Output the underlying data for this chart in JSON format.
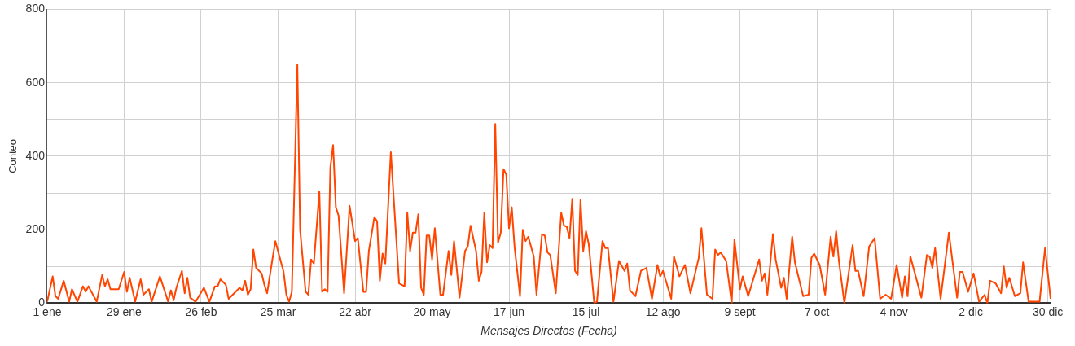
{
  "chart_data": {
    "type": "line",
    "xlabel": "Mensajes Directos (Fecha)",
    "ylabel": "Conteo",
    "x": [
      "--01-01",
      "--01-03",
      "--01-04",
      "--01-05",
      "--01-07",
      "--01-09",
      "--01-10",
      "--01-12",
      "--01-14",
      "--01-15",
      "--01-16",
      "--01-19",
      "--01-21",
      "--01-22",
      "--01-23",
      "--01-24",
      "--01-27",
      "--01-29",
      "--01-30",
      "--01-31",
      "--02-02",
      "--02-04",
      "--02-05",
      "--02-07",
      "--02-08",
      "--02-11",
      "--02-14",
      "--02-15",
      "--02-16",
      "--02-17",
      "--02-19",
      "--02-20",
      "--02-21",
      "--02-22",
      "--02-24",
      "--02-27",
      "--02-29",
      "--03-02",
      "--03-03",
      "--03-04",
      "--03-06",
      "--03-07",
      "--03-11",
      "--03-12",
      "--03-13",
      "--03-14",
      "--03-15",
      "--03-16",
      "--03-17",
      "--03-19",
      "--03-20",
      "--03-21",
      "--03-23",
      "--03-24",
      "--03-27",
      "--03-28",
      "--03-29",
      "--03-30",
      "--04-01",
      "--04-02",
      "--04-04",
      "--04-05",
      "--04-06",
      "--04-07",
      "--04-09",
      "--04-10",
      "--04-11",
      "--04-12",
      "--04-13",
      "--04-14",
      "--04-15",
      "--04-16",
      "--04-18",
      "--04-20",
      "--04-22",
      "--04-23",
      "--04-25",
      "--04-26",
      "--04-27",
      "--04-29",
      "--04-30",
      "--05-01",
      "--05-02",
      "--05-03",
      "--05-05",
      "--05-08",
      "--05-10",
      "--05-11",
      "--05-12",
      "--05-13",
      "--05-14",
      "--05-15",
      "--05-16",
      "--05-17",
      "--05-18",
      "--05-19",
      "--05-20",
      "--05-21",
      "--05-23",
      "--05-24",
      "--05-26",
      "--05-27",
      "--05-28",
      "--05-30",
      "--06-01",
      "--06-02",
      "--06-03",
      "--06-05",
      "--06-06",
      "--06-07",
      "--06-08",
      "--06-09",
      "--06-10",
      "--06-11",
      "--06-12",
      "--06-13",
      "--06-14",
      "--06-15",
      "--06-16",
      "--06-17",
      "--06-18",
      "--06-19",
      "--06-21",
      "--06-22",
      "--06-23",
      "--06-24",
      "--06-26",
      "--06-27",
      "--06-29",
      "--06-30",
      "--07-01",
      "--07-02",
      "--07-04",
      "--07-06",
      "--07-07",
      "--07-08",
      "--07-09",
      "--07-10",
      "--07-11",
      "--07-12",
      "--07-13",
      "--07-14",
      "--07-15",
      "--07-16",
      "--07-18",
      "--07-19",
      "--07-21",
      "--07-22",
      "--07-23",
      "--07-25",
      "--07-27",
      "--07-29",
      "--07-30",
      "--07-31",
      "--08-02",
      "--08-04",
      "--08-06",
      "--08-08",
      "--08-10",
      "--08-11",
      "--08-12",
      "--08-15",
      "--08-16",
      "--08-18",
      "--08-20",
      "--08-22",
      "--08-25",
      "--08-26",
      "--08-28",
      "--08-30",
      "--08-31",
      "--09-01",
      "--09-02",
      "--09-04",
      "--09-06",
      "--09-07",
      "--09-09",
      "--09-10",
      "--09-12",
      "--09-16",
      "--09-17",
      "--09-18",
      "--09-19",
      "--09-21",
      "--09-22",
      "--09-24",
      "--09-25",
      "--09-26",
      "--09-28",
      "--09-29",
      "--10-02",
      "--10-04",
      "--10-05",
      "--10-06",
      "--10-08",
      "--10-10",
      "--10-12",
      "--10-13",
      "--10-14",
      "--10-15",
      "--10-17",
      "--10-20",
      "--10-21",
      "--10-22",
      "--10-24",
      "--10-26",
      "--10-28",
      "--10-30",
      "--11-01",
      "--11-03",
      "--11-05",
      "--11-07",
      "--11-08",
      "--11-09",
      "--11-10",
      "--11-14",
      "--11-16",
      "--11-17",
      "--11-18",
      "--11-19",
      "--11-21",
      "--11-24",
      "--11-27",
      "--11-28",
      "--11-29",
      "--12-01",
      "--12-03",
      "--12-05",
      "--12-07",
      "--12-08",
      "--12-09",
      "--12-11",
      "--12-13",
      "--12-14",
      "--12-15",
      "--12-16",
      "--12-18",
      "--12-20",
      "--12-21",
      "--12-23",
      "--12-26",
      "--12-27",
      "--12-29",
      "--12-31"
    ],
    "series": [
      {
        "color": "#ff4500",
        "values": [
          4,
          73,
          19,
          12,
          61,
          4,
          38,
          4,
          46,
          31,
          46,
          4,
          77,
          46,
          65,
          38,
          38,
          85,
          31,
          69,
          4,
          65,
          23,
          38,
          4,
          73,
          4,
          35,
          8,
          42,
          88,
          27,
          69,
          15,
          4,
          42,
          4,
          46,
          46,
          65,
          50,
          12,
          42,
          35,
          61,
          23,
          38,
          146,
          96,
          81,
          50,
          27,
          123,
          169,
          85,
          23,
          4,
          31,
          650,
          200,
          31,
          23,
          119,
          108,
          304,
          31,
          38,
          31,
          369,
          430,
          261,
          238,
          27,
          265,
          169,
          177,
          31,
          31,
          142,
          234,
          223,
          61,
          135,
          108,
          411,
          54,
          46,
          246,
          142,
          192,
          192,
          242,
          42,
          23,
          184,
          184,
          119,
          204,
          23,
          23,
          142,
          77,
          169,
          15,
          142,
          154,
          211,
          142,
          61,
          85,
          246,
          111,
          158,
          150,
          488,
          165,
          192,
          365,
          350,
          204,
          261,
          154,
          19,
          200,
          169,
          181,
          127,
          23,
          188,
          184,
          138,
          131,
          27,
          246,
          211,
          208,
          177,
          284,
          88,
          77,
          281,
          142,
          196,
          161,
          0,
          4,
          169,
          150,
          150,
          4,
          115,
          88,
          108,
          35,
          19,
          88,
          96,
          12,
          104,
          73,
          88,
          12,
          127,
          73,
          104,
          27,
          123,
          204,
          23,
          12,
          146,
          131,
          138,
          115,
          0,
          173,
          38,
          73,
          19,
          119,
          61,
          81,
          23,
          188,
          119,
          42,
          69,
          12,
          181,
          111,
          19,
          23,
          123,
          135,
          104,
          23,
          181,
          127,
          196,
          115,
          0,
          158,
          88,
          88,
          19,
          154,
          177,
          12,
          23,
          12,
          104,
          15,
          73,
          19,
          127,
          15,
          131,
          127,
          96,
          150,
          12,
          192,
          15,
          85,
          85,
          31,
          81,
          4,
          23,
          0,
          61,
          54,
          27,
          100,
          42,
          69,
          19,
          27,
          111,
          4,
          4,
          4,
          150,
          12
        ]
      }
    ],
    "xlim": [
      "--01-01",
      "--12-31"
    ],
    "xticks": [
      {
        "value": "--01-01",
        "label": "1 ene"
      },
      {
        "value": "--01-29",
        "label": "29 ene"
      },
      {
        "value": "--02-26",
        "label": "26 feb"
      },
      {
        "value": "--03-25",
        "label": "25 mar"
      },
      {
        "value": "--04-22",
        "label": "22 abr"
      },
      {
        "value": "--05-20",
        "label": "20 may"
      },
      {
        "value": "--06-17",
        "label": "17 jun"
      },
      {
        "value": "--07-15",
        "label": "15 jul"
      },
      {
        "value": "--08-12",
        "label": "12 ago"
      },
      {
        "value": "--09-09",
        "label": "9 sept"
      },
      {
        "value": "--10-07",
        "label": "7 oct"
      },
      {
        "value": "--11-04",
        "label": "4 nov"
      },
      {
        "value": "--12-02",
        "label": "2 dic"
      },
      {
        "value": "--12-30",
        "label": "30 dic"
      }
    ],
    "ylim": [
      0,
      800
    ],
    "yticks": [
      0,
      {
        "value": 100,
        "label": null
      },
      200,
      {
        "value": 300,
        "label": null
      },
      400,
      {
        "value": 500,
        "label": null
      },
      600,
      {
        "value": 700,
        "label": null
      },
      800
    ],
    "grid": true,
    "marker": "none",
    "line_style": "solid"
  }
}
